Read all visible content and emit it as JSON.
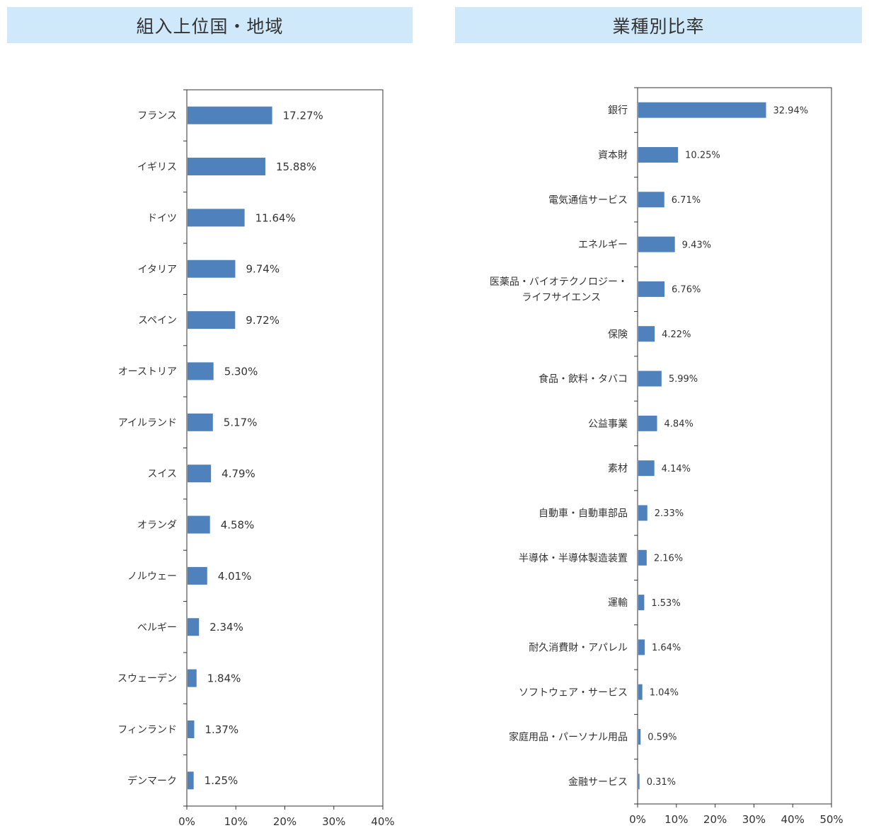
{
  "headers": {
    "left": "組入上位国・地域",
    "right": "業種別比率"
  },
  "colors": {
    "bar": "#4f81bd",
    "header_bg": "#cfe9fb",
    "axis": "#333333",
    "text": "#333333"
  },
  "chart_data": [
    {
      "type": "bar",
      "orientation": "horizontal",
      "title": "組入上位国・地域",
      "categories": [
        "フランス",
        "イギリス",
        "ドイツ",
        "イタリア",
        "スペイン",
        "オーストリア",
        "アイルランド",
        "スイス",
        "オランダ",
        "ノルウェー",
        "ベルギー",
        "スウェーデン",
        "フィンランド",
        "デンマーク"
      ],
      "values": [
        17.27,
        15.88,
        11.64,
        9.74,
        9.72,
        5.3,
        5.17,
        4.79,
        4.58,
        4.01,
        2.34,
        1.84,
        1.37,
        1.25
      ],
      "value_labels": [
        "17.27%",
        "15.88%",
        "11.64%",
        "9.74%",
        "9.72%",
        "5.30%",
        "5.17%",
        "4.79%",
        "4.58%",
        "4.01%",
        "2.34%",
        "1.84%",
        "1.37%",
        "1.25%"
      ],
      "xlim": [
        0,
        40
      ],
      "xticks": [
        "0%",
        "10%",
        "20%",
        "30%",
        "40%"
      ],
      "grid": false
    },
    {
      "type": "bar",
      "orientation": "horizontal",
      "title": "業種別比率",
      "categories": [
        "銀行",
        "資本財",
        "電気通信サービス",
        "エネルギー",
        "医薬品・バイオテクノロジー・\nライフサイエンス",
        "保険",
        "食品・飲料・タバコ",
        "公益事業",
        "素材",
        "自動車・自動車部品",
        "半導体・半導体製造装置",
        "運輸",
        "耐久消費財・アパレル",
        "ソフトウェア・サービス",
        "家庭用品・パーソナル用品",
        "金融サービス"
      ],
      "values": [
        32.94,
        10.25,
        6.71,
        9.43,
        6.76,
        4.22,
        5.99,
        4.84,
        4.14,
        2.33,
        2.16,
        1.53,
        1.64,
        1.04,
        0.59,
        0.31
      ],
      "value_labels": [
        "32.94%",
        "10.25%",
        "6.71%",
        "9.43%",
        "6.76%",
        "4.22%",
        "5.99%",
        "4.84%",
        "4.14%",
        "2.33%",
        "2.16%",
        "1.53%",
        "1.64%",
        "1.04%",
        "0.59%",
        "0.31%"
      ],
      "xlim": [
        0,
        50
      ],
      "xticks": [
        "0%",
        "10%",
        "20%",
        "30%",
        "40%",
        "50%"
      ],
      "grid": false
    }
  ]
}
